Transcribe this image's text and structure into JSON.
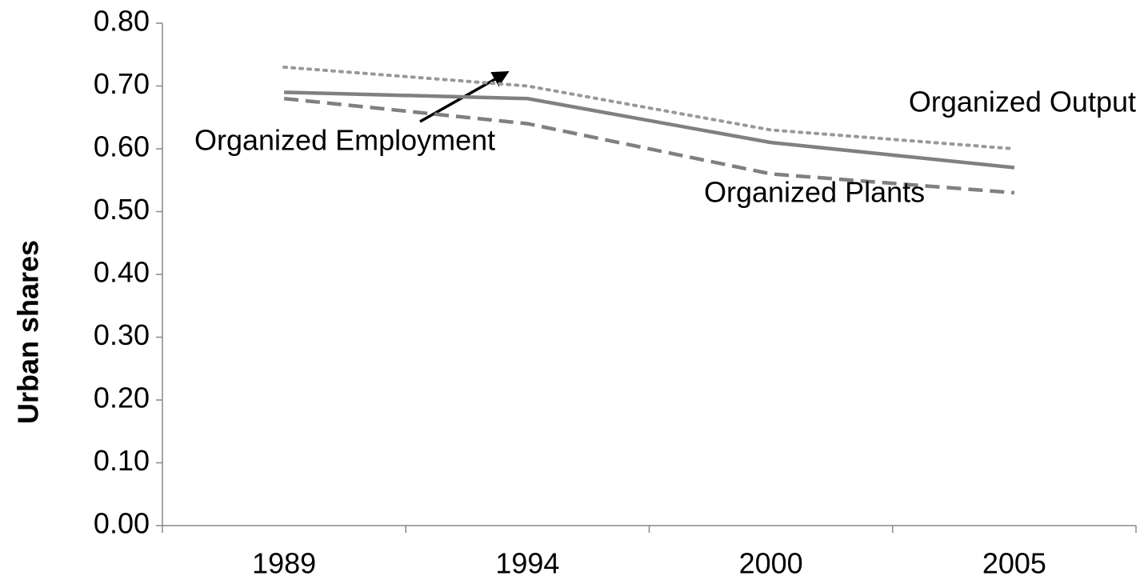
{
  "chart_data": {
    "type": "line",
    "y_label": "Urban shares",
    "categories": [
      "1989",
      "1994",
      "2000",
      "2005"
    ],
    "series": [
      {
        "name": "Organized Output",
        "color": "#999999",
        "style": "dotted",
        "values": [
          0.73,
          0.7,
          0.63,
          0.6
        ]
      },
      {
        "name": "Organized Employment",
        "color": "#808080",
        "style": "solid",
        "values": [
          0.69,
          0.68,
          0.61,
          0.57
        ]
      },
      {
        "name": "Organized Plants",
        "color": "#808080",
        "style": "dashed",
        "values": [
          0.68,
          0.64,
          0.56,
          0.53
        ]
      }
    ],
    "ylim": [
      0,
      0.8
    ],
    "yticks": [
      {
        "value": 0,
        "label": "0.00"
      },
      {
        "value": 0.1,
        "label": "0.10"
      },
      {
        "value": 0.2,
        "label": "0.20"
      },
      {
        "value": 0.3,
        "label": "0.30"
      },
      {
        "value": 0.4,
        "label": "0.40"
      },
      {
        "value": 0.5,
        "label": "0.50"
      },
      {
        "value": 0.6,
        "label": "0.60"
      },
      {
        "value": 0.7,
        "label": "0.70"
      },
      {
        "value": 0.8,
        "label": "0.80"
      }
    ],
    "grid": false
  }
}
